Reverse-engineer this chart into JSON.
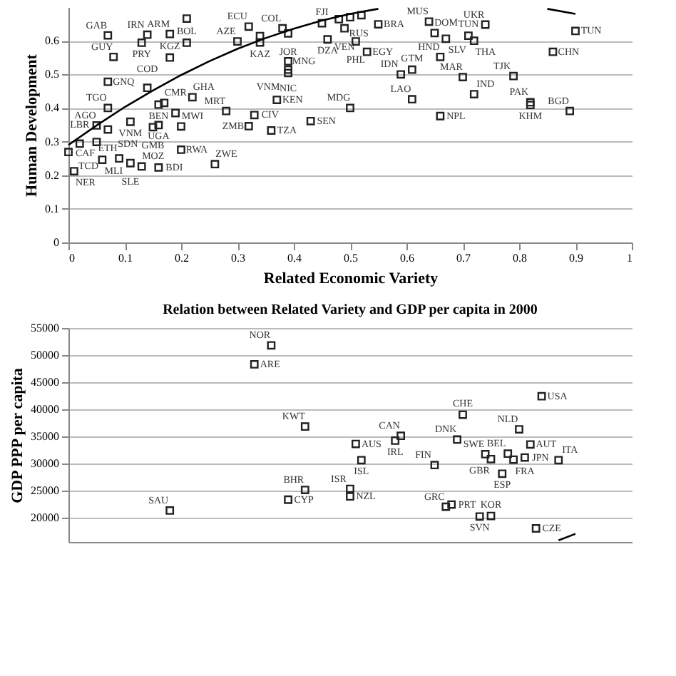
{
  "chart_data": [
    {
      "type": "scatter",
      "xlabel": "Related Economic Variety",
      "ylabel": "Human Development",
      "xlim": [
        0,
        1
      ],
      "ylim": [
        0,
        0.7
      ],
      "xticks": [
        0,
        0.1,
        0.2,
        0.3,
        0.4,
        0.5,
        0.6,
        0.7,
        0.8,
        0.9,
        1
      ],
      "yticks": [
        0,
        0.1,
        0.2,
        0.3,
        0.4,
        0.5,
        0.6
      ],
      "grid": "y",
      "series": [
        {
          "marker": "square",
          "color": "#222222",
          "x": [
            0.07,
            0.14,
            0.18,
            0.13,
            0.08,
            0.18,
            0.21,
            0.32,
            0.3,
            0.34,
            0.34,
            0.38,
            0.39,
            0.45,
            0.46,
            0.39,
            0.39,
            0.39,
            0.07,
            0.14,
            0.17,
            0.16,
            0.22,
            0.07,
            0.11,
            0.05,
            0.07,
            0.16,
            0.15,
            0.2,
            0.19,
            0.28,
            0.33,
            0.32,
            0.36,
            0.37,
            0.43,
            0.02,
            0.05,
            0.0,
            0.06,
            0.09,
            0.11,
            0.13,
            0.16,
            0.2,
            0.26,
            0.01,
            0.21,
            0.48,
            0.5,
            0.52,
            0.49,
            0.55,
            0.51,
            0.53,
            0.64,
            0.65,
            0.74,
            0.67,
            0.71,
            0.72,
            0.66,
            0.9,
            0.86,
            0.61,
            0.59,
            0.7,
            0.79,
            0.72,
            0.61,
            0.5,
            0.82,
            0.82,
            0.66,
            0.89
          ],
          "values": [
            0.616,
            0.618,
            0.62,
            0.594,
            0.552,
            0.55,
            0.594,
            0.642,
            0.598,
            0.614,
            0.595,
            0.637,
            0.622,
            0.652,
            0.604,
            0.539,
            0.514,
            0.504,
            0.478,
            0.46,
            0.415,
            0.41,
            0.432,
            0.4,
            0.359,
            0.348,
            0.336,
            0.349,
            0.343,
            0.345,
            0.385,
            0.391,
            0.379,
            0.346,
            0.333,
            0.424,
            0.361,
            0.294,
            0.299,
            0.269,
            0.246,
            0.25,
            0.236,
            0.226,
            0.223,
            0.276,
            0.233,
            0.212,
            0.666,
            0.664,
            0.67,
            0.676,
            0.637,
            0.649,
            0.598,
            0.567,
            0.657,
            0.623,
            0.648,
            0.606,
            0.615,
            0.6,
            0.552,
            0.629,
            0.567,
            0.514,
            0.5,
            0.492,
            0.495,
            0.441,
            0.426,
            0.4,
            0.417,
            0.409,
            0.376,
            0.391
          ],
          "value_labels": [
            "GAB",
            "IRN",
            "ARM",
            "PRY",
            "GUY",
            "KGZ",
            "BOL",
            "ECU",
            "AZE",
            null,
            "KAZ",
            "COL",
            "JOR",
            "FJI",
            "DZA",
            "MNG",
            "NIC",
            "VNM",
            "GNQ",
            "COD",
            "CMR",
            "BEN",
            "GHA",
            "TGO",
            "VNM",
            "AGO",
            "SDN",
            "UGA",
            "GMB",
            "MWI",
            null,
            "MRT",
            "CIV",
            "ZMB",
            "TZA",
            "KEN",
            "SEN",
            "LBR",
            "CAF",
            "TCD",
            "MLI",
            "ETH",
            "SLE",
            "MOZ",
            "BDI",
            "RWA",
            "ZWE",
            "NER",
            null,
            "RUS",
            null,
            null,
            "VEN",
            "BRA",
            "PHL",
            "EGY",
            "MUS",
            "DOM",
            "UKR",
            "SLV",
            "TUN",
            "THA",
            "HND",
            "TUN",
            "CHN",
            "GTM",
            "IDN",
            "MAR",
            "TJK",
            "IND",
            "LAO",
            "MDG",
            "PAK",
            "KHM",
            "NPL",
            "BGD"
          ]
        },
        {
          "type": "line",
          "color": "#000000",
          "x": [
            0,
            0.05,
            0.1,
            0.15,
            0.2,
            0.25,
            0.3,
            0.35,
            0.4,
            0.45,
            0.5,
            0.55
          ],
          "values": [
            0.29,
            0.348,
            0.403,
            0.452,
            0.498,
            0.539,
            0.576,
            0.608,
            0.636,
            0.66,
            0.68,
            0.695
          ]
        },
        {
          "type": "line",
          "color": "#000000",
          "x": [
            0.85,
            0.9
          ],
          "values": [
            0.695,
            0.68
          ]
        }
      ]
    },
    {
      "type": "scatter",
      "title": "Relation between Related Variety and GDP per capita in 2000",
      "ylabel": "GDP PPP per capita",
      "xlim": [
        0,
        1
      ],
      "ylim": [
        15500,
        55000
      ],
      "yticks": [
        20000,
        25000,
        30000,
        35000,
        40000,
        45000,
        50000,
        55000
      ],
      "grid": "y",
      "tick_labels": "y",
      "series": [
        {
          "marker": "square",
          "color": "#222222",
          "x": [
            0.36,
            0.33,
            0.42,
            0.42,
            0.39,
            0.18,
            0.84,
            0.7,
            0.8,
            0.59,
            0.58,
            0.51,
            0.69,
            0.82,
            0.52,
            0.65,
            0.74,
            0.78,
            0.81,
            0.75,
            0.79,
            0.87,
            0.77,
            0.5,
            0.5,
            0.68,
            0.67,
            0.75,
            0.73,
            0.83
          ],
          "values": [
            51800,
            48300,
            36800,
            25100,
            23300,
            21300,
            42400,
            39000,
            36300,
            35100,
            34200,
            33600,
            34400,
            33500,
            30600,
            29700,
            31700,
            31800,
            31100,
            30800,
            30700,
            30600,
            28100,
            25300,
            23900,
            22400,
            22000,
            20300,
            20200,
            18000
          ],
          "value_labels": [
            "NOR",
            "ARE",
            "KWT",
            "BHR",
            "CYP",
            "SAU",
            "USA",
            "CHE",
            "NLD",
            "CAN",
            "IRL",
            "AUS",
            "DNK",
            "AUT",
            "ISL",
            "FIN",
            "SWE",
            "BEL",
            "JPN",
            "GBR",
            "FRA",
            "ITA",
            "ESP",
            "ISR",
            "NZL",
            "PRT",
            "GRC",
            "KOR",
            "SVN",
            "CZE"
          ]
        },
        {
          "type": "line",
          "color": "#000000",
          "x": [
            0.87,
            0.9
          ],
          "values": [
            15800,
            17000
          ]
        }
      ]
    }
  ]
}
